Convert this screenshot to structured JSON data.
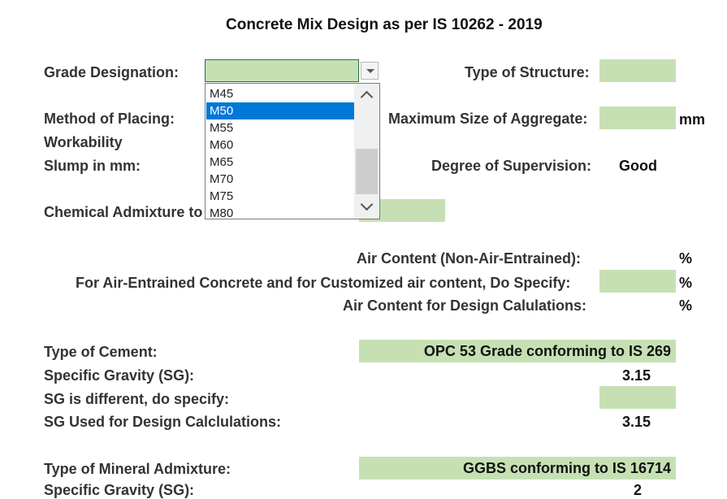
{
  "sheet": {
    "title": "Concrete Mix Design as per IS 10262 - 2019",
    "labels": {
      "grade_designation": "Grade Designation:",
      "type_of_structure": "Type of Structure:",
      "method_of_placing": "Method of Placing:",
      "max_size_aggregate": "Maximum Size of Aggregate:",
      "workability": "Workability",
      "slump": "Slump in mm:",
      "degree_of_supervision": "Degree of Supervision:",
      "chemical_admixture": "Chemical Admixture to",
      "air_content_nae": "Air Content (Non-Air-Entrained):",
      "air_entrained_specify": "For Air-Entrained Concrete and for Customized air content, Do Specify:",
      "air_content_design": "Air Content for Design Calulations:",
      "type_of_cement": "Type of Cement:",
      "specific_gravity": "Specific Gravity (SG):",
      "sg_different": "SG is different, do specify:",
      "sg_used": "SG Used for Design Calclulations:",
      "type_of_mineral_admixture": "Type of Mineral Admixture:",
      "specific_gravity_2": "Specific Gravity (SG):"
    },
    "units": {
      "mm": "mm",
      "percent_1": "%",
      "percent_2": "%",
      "percent_3": "%"
    },
    "values": {
      "degree_of_supervision": "Good",
      "type_of_cement": "OPC 53 Grade conforming to IS 269",
      "specific_gravity": "3.15",
      "sg_used": "3.15",
      "type_of_mineral_admixture": "GGBS conforming to IS 16714",
      "specific_gravity_2": "2"
    },
    "colors": {
      "input_fill": "#c6e0b4",
      "selection": "#0078d7"
    }
  },
  "grade_dropdown": {
    "current_value": "",
    "options": [
      "M45",
      "M50",
      "M55",
      "M60",
      "M65",
      "M70",
      "M75",
      "M80"
    ],
    "highlighted": "M50",
    "icons": {
      "open": "chevron-down-icon",
      "scroll_up": "chevron-up-icon",
      "scroll_down": "chevron-down-icon"
    }
  }
}
